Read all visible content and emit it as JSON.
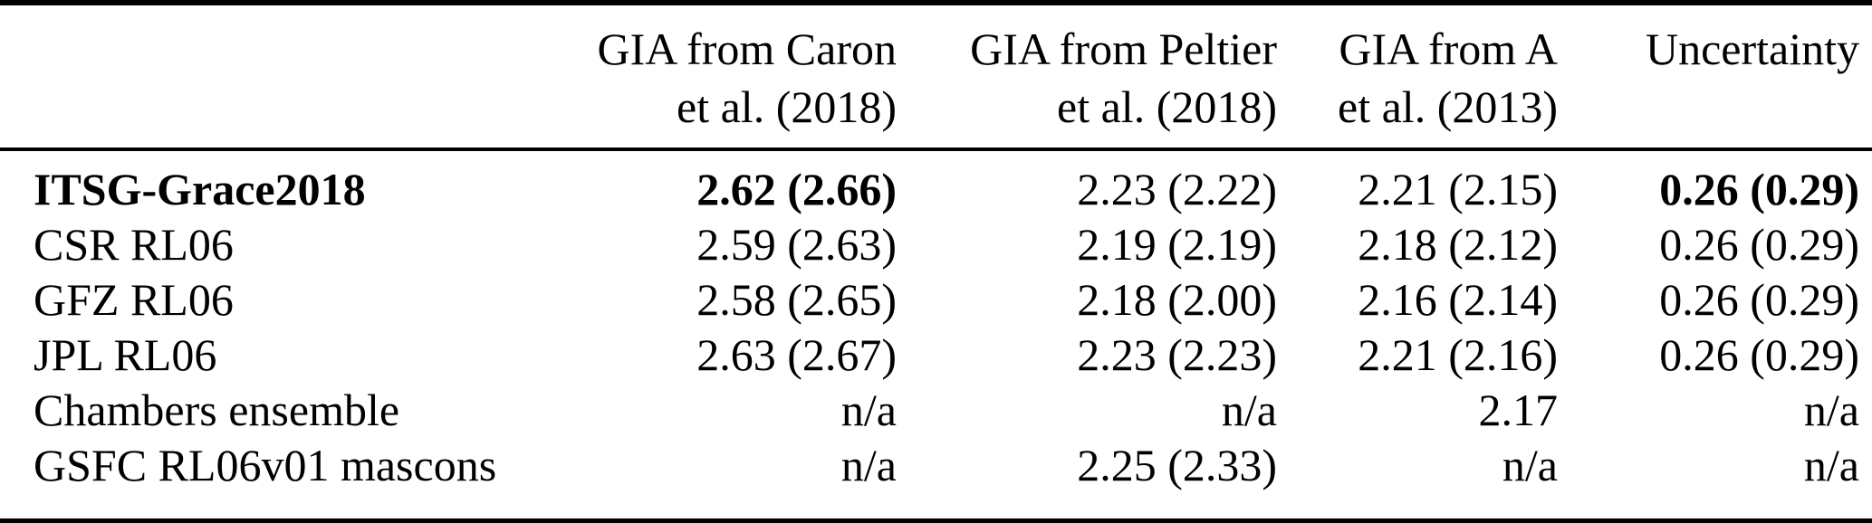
{
  "table": {
    "headers": {
      "label": "",
      "caron": {
        "line1": "GIA from Caron",
        "line2": "et al. (2018)"
      },
      "peltier": {
        "line1": "GIA from Peltier",
        "line2": "et al. (2018)"
      },
      "a": {
        "line1": "GIA from A",
        "line2": "et al. (2013)"
      },
      "uncertainty": {
        "line1": "Uncertainty",
        "line2": ""
      }
    },
    "rows": [
      {
        "label": "ITSG-Grace2018",
        "caron": "2.62 (2.66)",
        "peltier": "2.23 (2.22)",
        "a": "2.21 (2.15)",
        "uncertainty": "0.26 (0.29)"
      },
      {
        "label": "CSR RL06",
        "caron": "2.59 (2.63)",
        "peltier": "2.19 (2.19)",
        "a": "2.18 (2.12)",
        "uncertainty": "0.26 (0.29)"
      },
      {
        "label": "GFZ RL06",
        "caron": "2.58 (2.65)",
        "peltier": "2.18 (2.00)",
        "a": "2.16 (2.14)",
        "uncertainty": "0.26 (0.29)"
      },
      {
        "label": "JPL RL06",
        "caron": "2.63 (2.67)",
        "peltier": "2.23 (2.23)",
        "a": "2.21 (2.16)",
        "uncertainty": "0.26 (0.29)"
      },
      {
        "label": "Chambers ensemble",
        "caron": "n/a",
        "peltier": "n/a",
        "a": "2.17",
        "uncertainty": "n/a"
      },
      {
        "label": "GSFC RL06v01 mascons",
        "caron": "n/a",
        "peltier": "2.25 (2.33)",
        "a": "n/a",
        "uncertainty": "n/a"
      }
    ]
  }
}
